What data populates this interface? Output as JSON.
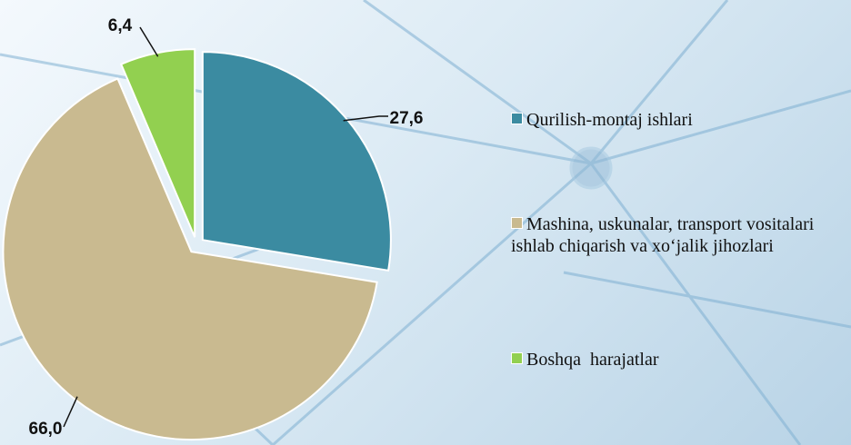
{
  "chart_data": {
    "type": "pie",
    "categories": [
      "Qurilish-montaj ishlari",
      "Mashina, uskunalar, transport vositalari ishlab chiqarish va xo‘jalik jihozlari",
      "Boshqa  harajatlar"
    ],
    "values": [
      27.6,
      66.0,
      6.4
    ],
    "value_labels": [
      "27,6",
      "66,0",
      "6,4"
    ],
    "colors": [
      "#3b8ba1",
      "#c9ba90",
      "#92d050"
    ]
  }
}
